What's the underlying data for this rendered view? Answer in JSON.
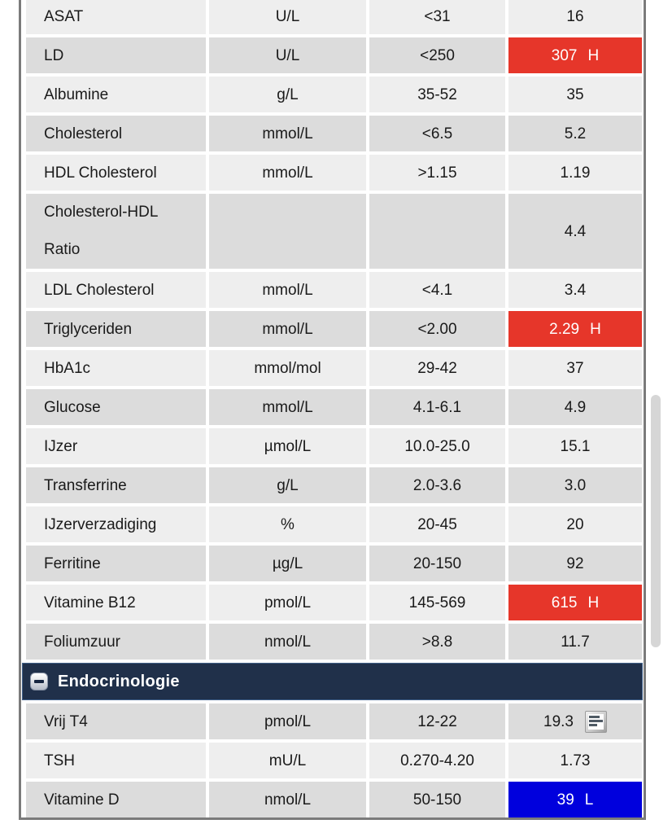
{
  "colors": {
    "high_result_bg": "#e6362a",
    "low_result_bg": "#0000dd",
    "section_header_bg": "#20304a",
    "section_header_border": "#41618a",
    "name_cell_bg": "#d4d4d4",
    "row_light_bg": "#eeeeee",
    "row_dark_bg": "#dcdcdc",
    "frame_border": "#7b7b7b"
  },
  "sections": [
    {
      "rows": [
        {
          "name": "ASAT",
          "unit": "U/L",
          "range": "<31",
          "result": "16",
          "flag": "",
          "status": "normal",
          "shade": "light"
        },
        {
          "name": "LD",
          "unit": "U/L",
          "range": "<250",
          "result": "307",
          "flag": "H",
          "status": "high",
          "shade": "dark"
        },
        {
          "name": "Albumine",
          "unit": "g/L",
          "range": "35-52",
          "result": "35",
          "flag": "",
          "status": "normal",
          "shade": "light"
        },
        {
          "name": "Cholesterol",
          "unit": "mmol/L",
          "range": "<6.5",
          "result": "5.2",
          "flag": "",
          "status": "normal",
          "shade": "dark"
        },
        {
          "name": "HDL Cholesterol",
          "unit": "mmol/L",
          "range": ">1.15",
          "result": "1.19",
          "flag": "",
          "status": "normal",
          "shade": "light"
        },
        {
          "name": "Cholesterol-HDL Ratio",
          "unit": "",
          "range": "",
          "result": "4.4",
          "flag": "",
          "status": "normal",
          "shade": "dark",
          "tall": true
        },
        {
          "name": "LDL Cholesterol",
          "unit": "mmol/L",
          "range": "<4.1",
          "result": "3.4",
          "flag": "",
          "status": "normal",
          "shade": "light"
        },
        {
          "name": "Triglyceriden",
          "unit": "mmol/L",
          "range": "<2.00",
          "result": "2.29",
          "flag": "H",
          "status": "high",
          "shade": "dark"
        },
        {
          "name": "HbA1c",
          "unit": "mmol/mol",
          "range": "29-42",
          "result": "37",
          "flag": "",
          "status": "normal",
          "shade": "light"
        },
        {
          "name": "Glucose",
          "unit": "mmol/L",
          "range": "4.1-6.1",
          "result": "4.9",
          "flag": "",
          "status": "normal",
          "shade": "dark"
        },
        {
          "name": "IJzer",
          "unit": "µmol/L",
          "range": "10.0-25.0",
          "result": "15.1",
          "flag": "",
          "status": "normal",
          "shade": "light"
        },
        {
          "name": "Transferrine",
          "unit": "g/L",
          "range": "2.0-3.6",
          "result": "3.0",
          "flag": "",
          "status": "normal",
          "shade": "dark"
        },
        {
          "name": "IJzerverzadiging",
          "unit": "%",
          "range": "20-45",
          "result": "20",
          "flag": "",
          "status": "normal",
          "shade": "light"
        },
        {
          "name": "Ferritine",
          "unit": "µg/L",
          "range": "20-150",
          "result": "92",
          "flag": "",
          "status": "normal",
          "shade": "dark"
        },
        {
          "name": "Vitamine B12",
          "unit": "pmol/L",
          "range": "145-569",
          "result": "615",
          "flag": "H",
          "status": "high",
          "shade": "light"
        },
        {
          "name": "Foliumzuur",
          "unit": "nmol/L",
          "range": ">8.8",
          "result": "11.7",
          "flag": "",
          "status": "normal",
          "shade": "dark"
        }
      ]
    },
    {
      "header": {
        "label": "Endocrinologie",
        "icon": "collapse-minus-icon",
        "expanded": true
      },
      "rows": [
        {
          "name": "Vrij T4",
          "unit": "pmol/L",
          "range": "12-22",
          "result": "19.3",
          "flag": "",
          "status": "normal",
          "shade": "dark",
          "note_icon": true
        },
        {
          "name": "TSH",
          "unit": "mU/L",
          "range": "0.270-4.20",
          "result": "1.73",
          "flag": "",
          "status": "normal",
          "shade": "light"
        },
        {
          "name": "Vitamine D",
          "unit": "nmol/L",
          "range": "50-150",
          "result": "39",
          "flag": "L",
          "status": "low",
          "shade": "dark"
        }
      ]
    }
  ]
}
